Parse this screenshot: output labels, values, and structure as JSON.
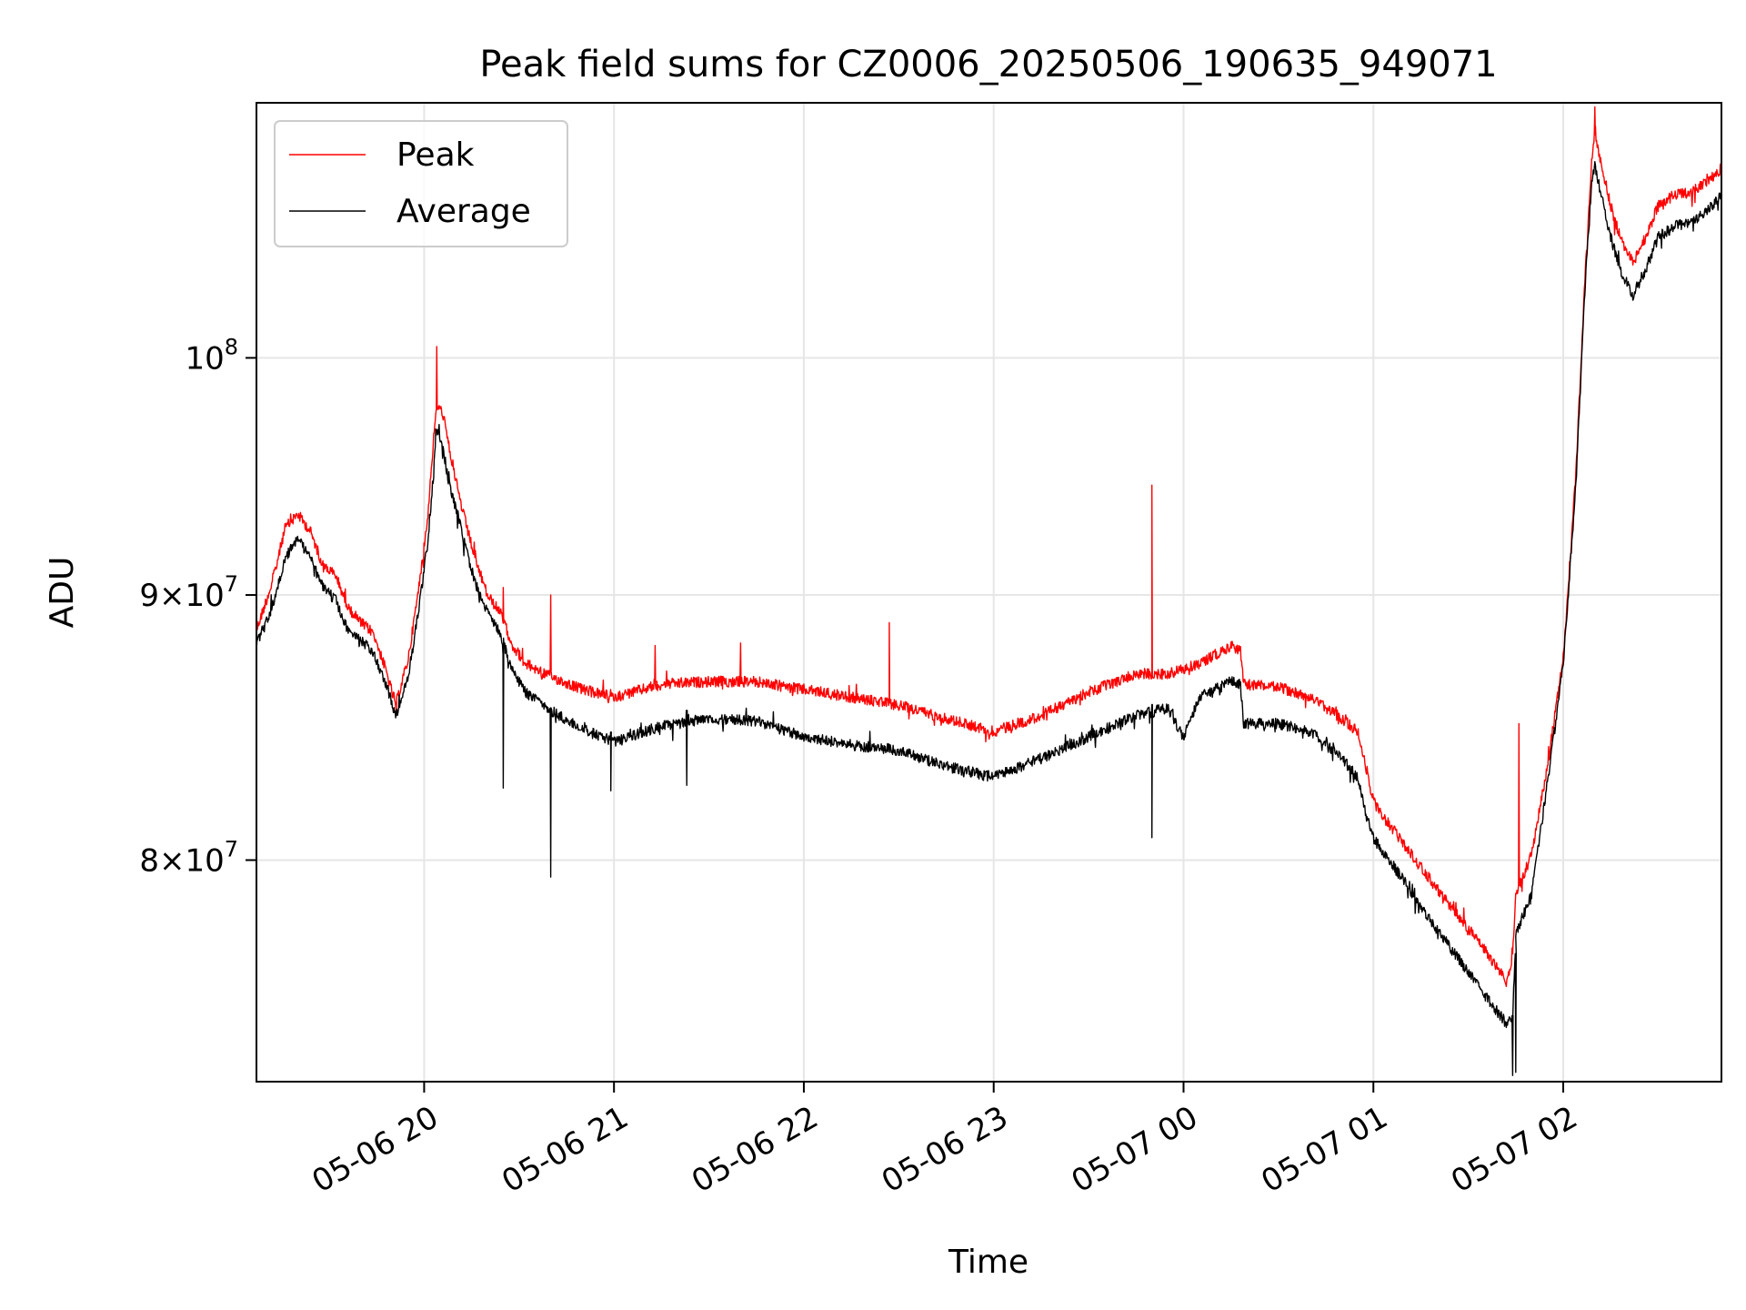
{
  "chart_data": {
    "type": "line",
    "title": "Peak field sums for CZ0006_20250506_190635_949071",
    "xlabel": "Time",
    "ylabel": "ADU",
    "y_scale": "log",
    "ylim": [
      72500000,
      112000000
    ],
    "xlim": [
      "2025-05-06 19:07:00",
      "2025-05-07 02:50:00"
    ],
    "grid": true,
    "legend": {
      "location": "upper-left",
      "entries": [
        "Peak",
        "Average"
      ]
    },
    "x_ticks": [
      {
        "value": "2025-05-06 20:00",
        "label": "05-06 20"
      },
      {
        "value": "2025-05-06 21:00",
        "label": "05-06 21"
      },
      {
        "value": "2025-05-06 22:00",
        "label": "05-06 22"
      },
      {
        "value": "2025-05-06 23:00",
        "label": "05-06 23"
      },
      {
        "value": "2025-05-07 00:00",
        "label": "05-07 00"
      },
      {
        "value": "2025-05-07 01:00",
        "label": "05-07 01"
      },
      {
        "value": "2025-05-07 02:00",
        "label": "05-07 02"
      }
    ],
    "y_ticks": [
      {
        "value": 80000000,
        "mantissa": "8",
        "exponent": "7"
      },
      {
        "value": 90000000,
        "mantissa": "9",
        "exponent": "7"
      },
      {
        "value": 100000000,
        "mantissa": "",
        "exponent": "8"
      }
    ],
    "series": [
      {
        "name": "Peak",
        "color": "#ff0000",
        "points": [
          [
            "2025-05-06 19:07",
            88600000
          ],
          [
            "2025-05-06 19:12",
            90500000
          ],
          [
            "2025-05-06 19:16",
            92700000
          ],
          [
            "2025-05-06 19:20",
            93300000
          ],
          [
            "2025-05-06 19:24",
            92600000
          ],
          [
            "2025-05-06 19:28",
            91200000
          ],
          [
            "2025-05-06 19:32",
            90800000
          ],
          [
            "2025-05-06 19:36",
            89500000
          ],
          [
            "2025-05-06 19:40",
            88900000
          ],
          [
            "2025-05-06 19:44",
            88500000
          ],
          [
            "2025-05-06 19:48",
            87000000
          ],
          [
            "2025-05-06 19:51",
            85700000
          ],
          [
            "2025-05-06 19:55",
            87500000
          ],
          [
            "2025-05-06 19:58",
            90000000
          ],
          [
            "2025-05-06 20:01",
            93000000
          ],
          [
            "2025-05-06 20:03",
            96500000
          ],
          [
            "2025-05-06 20:04",
            98000000
          ],
          [
            "2025-05-06 20:06",
            97500000
          ],
          [
            "2025-05-06 20:08",
            96000000
          ],
          [
            "2025-05-06 20:12",
            93500000
          ],
          [
            "2025-05-06 20:16",
            91500000
          ],
          [
            "2025-05-06 20:20",
            90000000
          ],
          [
            "2025-05-06 20:24",
            89300000
          ],
          [
            "2025-05-06 20:28",
            88000000
          ],
          [
            "2025-05-06 20:32",
            87300000
          ],
          [
            "2025-05-06 20:40",
            86800000
          ],
          [
            "2025-05-06 20:50",
            86300000
          ],
          [
            "2025-05-06 21:00",
            86000000
          ],
          [
            "2025-05-06 21:15",
            86500000
          ],
          [
            "2025-05-06 21:30",
            86600000
          ],
          [
            "2025-05-06 21:45",
            86600000
          ],
          [
            "2025-05-06 22:00",
            86300000
          ],
          [
            "2025-05-06 22:15",
            86000000
          ],
          [
            "2025-05-06 22:30",
            85700000
          ],
          [
            "2025-05-06 22:45",
            85200000
          ],
          [
            "2025-05-06 23:00",
            84700000
          ],
          [
            "2025-05-06 23:15",
            85300000
          ],
          [
            "2025-05-06 23:30",
            86200000
          ],
          [
            "2025-05-06 23:45",
            86900000
          ],
          [
            "2025-05-06 23:55",
            86900000
          ],
          [
            "2025-05-07 00:05",
            87300000
          ],
          [
            "2025-05-07 00:15",
            88000000
          ],
          [
            "2025-05-07 00:18",
            87800000
          ],
          [
            "2025-05-07 00:19",
            86500000
          ],
          [
            "2025-05-07 00:30",
            86400000
          ],
          [
            "2025-05-07 00:40",
            86000000
          ],
          [
            "2025-05-07 00:50",
            85200000
          ],
          [
            "2025-05-07 00:55",
            84700000
          ],
          [
            "2025-05-07 00:58",
            83200000
          ],
          [
            "2025-05-07 01:00",
            82100000
          ],
          [
            "2025-05-07 01:10",
            80500000
          ],
          [
            "2025-05-07 01:20",
            79000000
          ],
          [
            "2025-05-07 01:30",
            77600000
          ],
          [
            "2025-05-07 01:37",
            76600000
          ],
          [
            "2025-05-07 01:42",
            75800000
          ],
          [
            "2025-05-07 01:44",
            76600000
          ],
          [
            "2025-05-07 01:45",
            78800000
          ],
          [
            "2025-05-07 01:50",
            80200000
          ],
          [
            "2025-05-07 01:55",
            83400000
          ],
          [
            "2025-05-07 02:00",
            87500000
          ],
          [
            "2025-05-07 02:04",
            95000000
          ],
          [
            "2025-05-07 02:07",
            104000000
          ],
          [
            "2025-05-07 02:09",
            109000000
          ],
          [
            "2025-05-07 02:10",
            110500000
          ],
          [
            "2025-05-07 02:12",
            109000000
          ],
          [
            "2025-05-07 02:15",
            107000000
          ],
          [
            "2025-05-07 02:18",
            105500000
          ],
          [
            "2025-05-07 02:22",
            104300000
          ],
          [
            "2025-05-07 02:26",
            105500000
          ],
          [
            "2025-05-07 02:30",
            107000000
          ],
          [
            "2025-05-07 02:35",
            107500000
          ],
          [
            "2025-05-07 02:40",
            107600000
          ],
          [
            "2025-05-07 02:46",
            108200000
          ],
          [
            "2025-05-07 02:50",
            108800000
          ]
        ],
        "spikes": [
          [
            "2025-05-06 20:04",
            100500000
          ],
          [
            "2025-05-06 20:25",
            90300000
          ],
          [
            "2025-05-06 20:40",
            90000000
          ],
          [
            "2025-05-06 21:13",
            88000000
          ],
          [
            "2025-05-06 21:40",
            88100000
          ],
          [
            "2025-05-06 22:27",
            88900000
          ],
          [
            "2025-05-06 23:50",
            94500000
          ],
          [
            "2025-05-07 01:46",
            85000000
          ],
          [
            "2025-05-07 02:10",
            111800000
          ]
        ]
      },
      {
        "name": "Average",
        "color": "#000000",
        "points": [
          [
            "2025-05-06 19:07",
            88000000
          ],
          [
            "2025-05-06 19:12",
            89500000
          ],
          [
            "2025-05-06 19:16",
            91500000
          ],
          [
            "2025-05-06 19:20",
            92300000
          ],
          [
            "2025-05-06 19:24",
            91500000
          ],
          [
            "2025-05-06 19:28",
            90300000
          ],
          [
            "2025-05-06 19:32",
            89800000
          ],
          [
            "2025-05-06 19:36",
            88600000
          ],
          [
            "2025-05-06 19:40",
            88200000
          ],
          [
            "2025-05-06 19:44",
            87700000
          ],
          [
            "2025-05-06 19:48",
            86500000
          ],
          [
            "2025-05-06 19:51",
            85300000
          ],
          [
            "2025-05-06 19:55",
            86800000
          ],
          [
            "2025-05-06 19:58",
            89200000
          ],
          [
            "2025-05-06 20:01",
            92000000
          ],
          [
            "2025-05-06 20:03",
            95000000
          ],
          [
            "2025-05-06 20:04",
            97000000
          ],
          [
            "2025-05-06 20:06",
            96000000
          ],
          [
            "2025-05-06 20:08",
            94500000
          ],
          [
            "2025-05-06 20:12",
            92500000
          ],
          [
            "2025-05-06 20:16",
            90500000
          ],
          [
            "2025-05-06 20:20",
            89300000
          ],
          [
            "2025-05-06 20:24",
            88500000
          ],
          [
            "2025-05-06 20:28",
            87000000
          ],
          [
            "2025-05-06 20:32",
            86200000
          ],
          [
            "2025-05-06 20:40",
            85500000
          ],
          [
            "2025-05-06 20:50",
            84800000
          ],
          [
            "2025-05-06 21:00",
            84300000
          ],
          [
            "2025-05-06 21:15",
            84900000
          ],
          [
            "2025-05-06 21:30",
            85200000
          ],
          [
            "2025-05-06 21:45",
            85100000
          ],
          [
            "2025-05-06 22:00",
            84500000
          ],
          [
            "2025-05-06 22:15",
            84200000
          ],
          [
            "2025-05-06 22:30",
            84000000
          ],
          [
            "2025-05-06 22:45",
            83400000
          ],
          [
            "2025-05-06 23:00",
            83000000
          ],
          [
            "2025-05-06 23:15",
            83700000
          ],
          [
            "2025-05-06 23:30",
            84500000
          ],
          [
            "2025-05-06 23:45",
            85300000
          ],
          [
            "2025-05-06 23:55",
            85600000
          ],
          [
            "2025-05-07 00:00",
            84500000
          ],
          [
            "2025-05-07 00:05",
            86000000
          ],
          [
            "2025-05-07 00:15",
            86600000
          ],
          [
            "2025-05-07 00:18",
            86500000
          ],
          [
            "2025-05-07 00:19",
            85000000
          ],
          [
            "2025-05-07 00:30",
            85000000
          ],
          [
            "2025-05-07 00:40",
            84700000
          ],
          [
            "2025-05-07 00:50",
            83700000
          ],
          [
            "2025-05-07 00:55",
            83000000
          ],
          [
            "2025-05-07 00:58",
            81500000
          ],
          [
            "2025-05-07 01:00",
            80800000
          ],
          [
            "2025-05-07 01:10",
            79200000
          ],
          [
            "2025-05-07 01:20",
            77600000
          ],
          [
            "2025-05-07 01:30",
            76100000
          ],
          [
            "2025-05-07 01:37",
            75100000
          ],
          [
            "2025-05-07 01:42",
            74400000
          ],
          [
            "2025-05-07 01:44",
            74600000
          ],
          [
            "2025-05-07 01:45",
            77400000
          ],
          [
            "2025-05-07 01:50",
            78800000
          ],
          [
            "2025-05-07 01:55",
            82800000
          ],
          [
            "2025-05-07 02:00",
            87200000
          ],
          [
            "2025-05-07 02:04",
            94500000
          ],
          [
            "2025-05-07 02:07",
            103500000
          ],
          [
            "2025-05-07 02:09",
            108000000
          ],
          [
            "2025-05-07 02:10",
            109000000
          ],
          [
            "2025-05-07 02:12",
            107500000
          ],
          [
            "2025-05-07 02:15",
            105500000
          ],
          [
            "2025-05-07 02:18",
            104000000
          ],
          [
            "2025-05-07 02:22",
            102800000
          ],
          [
            "2025-05-07 02:26",
            104000000
          ],
          [
            "2025-05-07 02:30",
            105500000
          ],
          [
            "2025-05-07 02:35",
            106000000
          ],
          [
            "2025-05-07 02:40",
            106200000
          ],
          [
            "2025-05-07 02:46",
            106800000
          ],
          [
            "2025-05-07 02:50",
            107600000
          ]
        ],
        "spikes": [
          [
            "2025-05-06 20:25",
            82600000
          ],
          [
            "2025-05-06 20:40",
            79400000
          ],
          [
            "2025-05-06 20:59",
            82500000
          ],
          [
            "2025-05-06 21:23",
            82700000
          ],
          [
            "2025-05-06 23:50",
            80800000
          ],
          [
            "2025-05-07 01:44",
            72700000
          ],
          [
            "2025-05-07 01:45",
            72800000
          ]
        ]
      }
    ]
  }
}
